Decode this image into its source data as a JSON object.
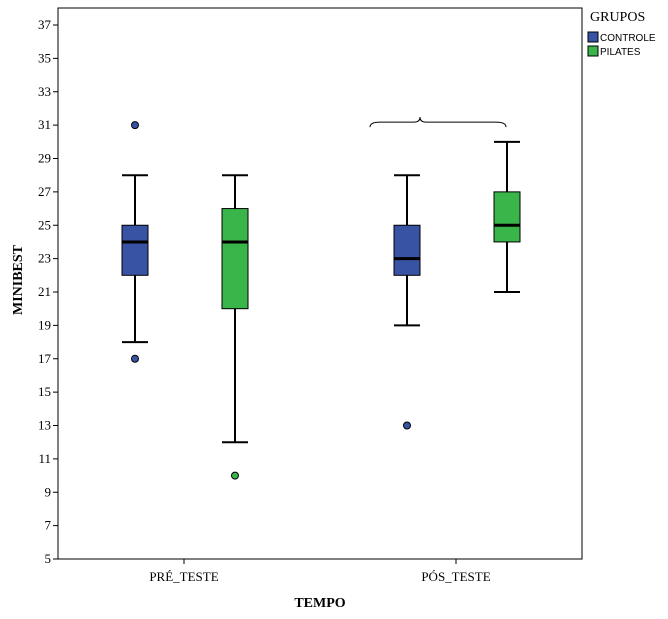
{
  "chart_data": {
    "type": "boxplot",
    "title": "",
    "xlabel": "TEMPO",
    "ylabel": "MINIBEST",
    "ylim": [
      5,
      38
    ],
    "yticks": [
      5,
      7,
      9,
      11,
      13,
      15,
      17,
      19,
      21,
      23,
      25,
      27,
      29,
      31,
      33,
      35,
      37
    ],
    "categories": [
      "PRÉ_TESTE",
      "PÓS_TESTE"
    ],
    "legend_title": "GRUPOS",
    "legend_position": "top-right",
    "series": [
      {
        "name": "CONTROLE",
        "color": "#3953a4",
        "boxes": [
          {
            "whisker_low": 18,
            "q1": 22,
            "median": 24,
            "q3": 25,
            "whisker_high": 28,
            "outliers": [
              31,
              17
            ]
          },
          {
            "whisker_low": 19,
            "q1": 22,
            "median": 23,
            "q3": 25,
            "whisker_high": 28,
            "outliers": [
              13
            ]
          }
        ]
      },
      {
        "name": "PILATES",
        "color": "#3ab54a",
        "boxes": [
          {
            "whisker_low": 12,
            "q1": 20,
            "median": 24,
            "q3": 26,
            "whisker_high": 28,
            "outliers": [
              10
            ]
          },
          {
            "whisker_low": 21,
            "q1": 24,
            "median": 25,
            "q3": 27,
            "whisker_high": 30,
            "outliers": []
          }
        ]
      }
    ],
    "annotations": [
      {
        "type": "brace",
        "category": "PÓS_TESTE",
        "value": 31
      }
    ]
  }
}
